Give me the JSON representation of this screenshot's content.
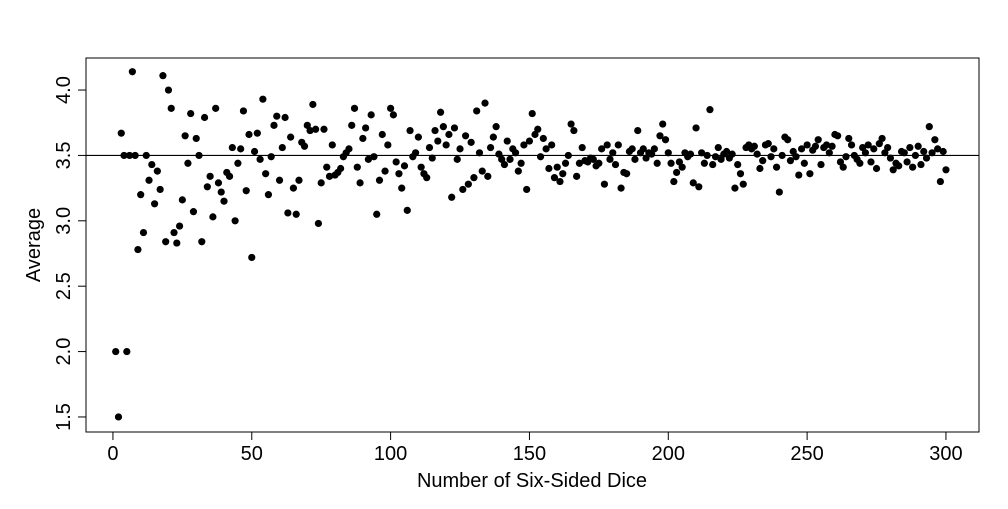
{
  "chart_data": {
    "type": "scatter",
    "x_label": "Number of Six-Sided Dice",
    "y_label": "Average",
    "color": "#000000",
    "hline": 3.5,
    "xlim": [
      -9.7,
      311.9
    ],
    "ylim": [
      1.385,
      4.245
    ],
    "xticks": [
      0,
      50,
      100,
      150,
      200,
      250,
      300
    ],
    "yticks": [
      1.5,
      {
        "value": 2,
        "label": "2.0"
      },
      2.5,
      {
        "value": 3,
        "label": "3.0"
      },
      3.5,
      {
        "value": 4,
        "label": "4.0"
      }
    ],
    "x": [
      1,
      2,
      3,
      4,
      5,
      6,
      7,
      8,
      9,
      10,
      11,
      12,
      13,
      14,
      15,
      16,
      17,
      18,
      19,
      20,
      21,
      22,
      23,
      24,
      25,
      26,
      27,
      28,
      29,
      30,
      31,
      32,
      33,
      34,
      35,
      36,
      37,
      38,
      39,
      40,
      41,
      42,
      43,
      44,
      45,
      46,
      47,
      48,
      49,
      50,
      51,
      52,
      53,
      54,
      55,
      56,
      57,
      58,
      59,
      60,
      61,
      62,
      63,
      64,
      65,
      66,
      67,
      68,
      69,
      70,
      71,
      72,
      73,
      74,
      75,
      76,
      77,
      78,
      79,
      80,
      81,
      82,
      83,
      84,
      85,
      86,
      87,
      88,
      89,
      90,
      91,
      92,
      93,
      94,
      95,
      96,
      97,
      98,
      99,
      100,
      101,
      102,
      103,
      104,
      105,
      106,
      107,
      108,
      109,
      110,
      111,
      112,
      113,
      114,
      115,
      116,
      117,
      118,
      119,
      120,
      121,
      122,
      123,
      124,
      125,
      126,
      127,
      128,
      129,
      130,
      131,
      132,
      133,
      134,
      135,
      136,
      137,
      138,
      139,
      140,
      141,
      142,
      143,
      144,
      145,
      146,
      147,
      148,
      149,
      150,
      151,
      152,
      153,
      154,
      155,
      156,
      157,
      158,
      159,
      160,
      161,
      162,
      163,
      164,
      165,
      166,
      167,
      168,
      169,
      170,
      171,
      172,
      173,
      174,
      175,
      176,
      177,
      178,
      179,
      180,
      181,
      182,
      183,
      184,
      185,
      186,
      187,
      188,
      189,
      190,
      191,
      192,
      193,
      194,
      195,
      196,
      197,
      198,
      199,
      200,
      201,
      202,
      203,
      204,
      205,
      206,
      207,
      208,
      209,
      210,
      211,
      212,
      213,
      214,
      215,
      216,
      217,
      218,
      219,
      220,
      221,
      222,
      223,
      224,
      225,
      226,
      227,
      228,
      229,
      230,
      231,
      232,
      233,
      234,
      235,
      236,
      237,
      238,
      239,
      240,
      241,
      242,
      243,
      244,
      245,
      246,
      247,
      248,
      249,
      250,
      251,
      252,
      253,
      254,
      255,
      256,
      257,
      258,
      259,
      260,
      261,
      262,
      263,
      264,
      265,
      266,
      267,
      268,
      269,
      270,
      271,
      272,
      273,
      274,
      275,
      276,
      277,
      278,
      279,
      280,
      281,
      282,
      283,
      284,
      285,
      286,
      287,
      288,
      289,
      290,
      291,
      292,
      293,
      294,
      295,
      296,
      297,
      298,
      299,
      300
    ],
    "values": [
      2.0,
      1.5,
      3.67,
      3.5,
      2.0,
      3.5,
      4.14,
      3.5,
      2.78,
      3.2,
      2.91,
      3.5,
      3.31,
      3.43,
      3.13,
      3.38,
      3.24,
      4.11,
      2.84,
      4.0,
      3.86,
      2.91,
      2.83,
      2.96,
      3.16,
      3.65,
      3.44,
      3.82,
      3.07,
      3.63,
      3.5,
      2.84,
      3.79,
      3.26,
      3.34,
      3.03,
      3.86,
      3.29,
      3.22,
      3.15,
      3.37,
      3.34,
      3.56,
      3.0,
      3.44,
      3.55,
      3.84,
      3.23,
      3.66,
      2.72,
      3.53,
      3.67,
      3.47,
      3.93,
      3.36,
      3.2,
      3.49,
      3.73,
      3.8,
      3.31,
      3.56,
      3.79,
      3.06,
      3.64,
      3.25,
      3.05,
      3.31,
      3.6,
      3.57,
      3.73,
      3.69,
      3.89,
      3.7,
      2.98,
      3.29,
      3.7,
      3.41,
      3.34,
      3.58,
      3.35,
      3.37,
      3.4,
      3.49,
      3.52,
      3.55,
      3.73,
      3.86,
      3.41,
      3.29,
      3.63,
      3.71,
      3.47,
      3.81,
      3.49,
      3.05,
      3.31,
      3.66,
      3.38,
      3.58,
      3.86,
      3.81,
      3.45,
      3.36,
      3.25,
      3.42,
      3.08,
      3.69,
      3.49,
      3.52,
      3.64,
      3.41,
      3.36,
      3.33,
      3.56,
      3.48,
      3.69,
      3.61,
      3.83,
      3.72,
      3.58,
      3.66,
      3.18,
      3.71,
      3.47,
      3.55,
      3.24,
      3.65,
      3.28,
      3.6,
      3.33,
      3.84,
      3.52,
      3.38,
      3.9,
      3.34,
      3.56,
      3.64,
      3.72,
      3.51,
      3.47,
      3.43,
      3.61,
      3.47,
      3.55,
      3.52,
      3.38,
      3.44,
      3.58,
      3.24,
      3.61,
      3.82,
      3.66,
      3.7,
      3.49,
      3.63,
      3.55,
      3.4,
      3.58,
      3.33,
      3.41,
      3.3,
      3.36,
      3.44,
      3.5,
      3.74,
      3.69,
      3.34,
      3.44,
      3.56,
      3.46,
      3.45,
      3.48,
      3.47,
      3.42,
      3.44,
      3.55,
      3.28,
      3.58,
      3.47,
      3.52,
      3.43,
      3.58,
      3.25,
      3.37,
      3.36,
      3.53,
      3.55,
      3.47,
      3.69,
      3.52,
      3.55,
      3.48,
      3.52,
      3.51,
      3.55,
      3.44,
      3.65,
      3.74,
      3.62,
      3.52,
      3.44,
      3.3,
      3.37,
      3.45,
      3.41,
      3.52,
      3.49,
      3.51,
      3.29,
      3.71,
      3.26,
      3.52,
      3.44,
      3.5,
      3.85,
      3.43,
      3.49,
      3.56,
      3.47,
      3.51,
      3.53,
      3.48,
      3.51,
      3.25,
      3.43,
      3.36,
      3.28,
      3.56,
      3.58,
      3.55,
      3.57,
      3.51,
      3.4,
      3.46,
      3.58,
      3.59,
      3.49,
      3.55,
      3.41,
      3.22,
      3.5,
      3.64,
      3.62,
      3.46,
      3.53,
      3.49,
      3.35,
      3.55,
      3.44,
      3.58,
      3.36,
      3.54,
      3.57,
      3.62,
      3.43,
      3.56,
      3.58,
      3.52,
      3.57,
      3.66,
      3.65,
      3.45,
      3.41,
      3.49,
      3.63,
      3.58,
      3.5,
      3.47,
      3.44,
      3.56,
      3.52,
      3.58,
      3.45,
      3.55,
      3.4,
      3.59,
      3.63,
      3.52,
      3.56,
      3.48,
      3.39,
      3.44,
      3.42,
      3.53,
      3.52,
      3.45,
      3.56,
      3.41,
      3.5,
      3.57,
      3.43,
      3.53,
      3.48,
      3.72,
      3.52,
      3.62,
      3.55,
      3.3,
      3.53,
      3.39
    ]
  }
}
